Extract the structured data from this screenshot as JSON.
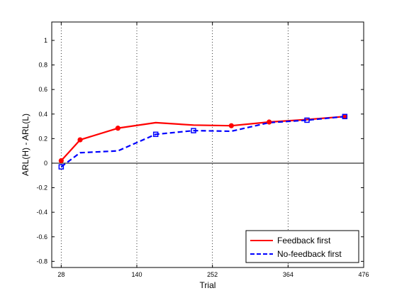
{
  "chart_data": {
    "type": "line",
    "title": "",
    "xlabel": "Trial",
    "ylabel": "ARL(H) - ARL(L)",
    "xlim": [
      14,
      476
    ],
    "ylim": [
      -0.85,
      1.15
    ],
    "x_ticks": [
      28,
      140,
      252,
      364,
      476
    ],
    "y_ticks": [
      -0.8,
      -0.6,
      -0.4,
      -0.2,
      0,
      0.2,
      0.4,
      0.6,
      0.8,
      1
    ],
    "y_tick_labels": [
      "-0.8",
      "-0.6",
      "-0.4",
      "-0.2",
      "0",
      "0.2",
      "0.4",
      "0.6",
      "0.8",
      "1"
    ],
    "vertical_grid": true,
    "zero_line": 0,
    "legend_position": "bottom-right",
    "series": [
      {
        "name": "Feedback first",
        "color": "#ff0000",
        "line_style": "solid",
        "marker": "circle",
        "x": [
          28,
          56,
          112,
          168,
          224,
          280,
          336,
          392,
          448
        ],
        "y": [
          0.02,
          0.19,
          0.285,
          0.33,
          0.31,
          0.305,
          0.335,
          0.355,
          0.38
        ]
      },
      {
        "name": "No-feedback first",
        "color": "#0000ff",
        "line_style": "dashed",
        "marker": "square",
        "x": [
          28,
          56,
          112,
          168,
          224,
          280,
          336,
          392,
          448
        ],
        "y": [
          -0.03,
          0.085,
          0.1,
          0.235,
          0.265,
          0.26,
          0.33,
          0.35,
          0.38
        ]
      }
    ],
    "marker_points": [
      {
        "series": 0,
        "indices": [
          0,
          1,
          2,
          5,
          6,
          8
        ]
      },
      {
        "series": 1,
        "indices": [
          0,
          3,
          4,
          7,
          8
        ]
      }
    ]
  }
}
